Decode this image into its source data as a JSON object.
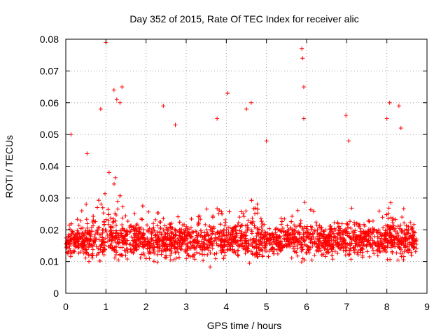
{
  "chart_data": {
    "type": "scatter",
    "title": "Day 352 of 2015, Rate Of TEC Index for receiver alic",
    "xlabel": "GPS time / hours",
    "ylabel": "ROTI / TECUs",
    "xlim": [
      0,
      9
    ],
    "ylim": [
      0,
      0.08
    ],
    "x_ticks": [
      0,
      1,
      2,
      3,
      4,
      5,
      6,
      7,
      8,
      9
    ],
    "x_tick_labels": [
      "0",
      "1",
      "2",
      "3",
      "4",
      "5",
      "6",
      "7",
      "8",
      "9"
    ],
    "y_ticks": [
      0,
      0.01,
      0.02,
      0.03,
      0.04,
      0.05,
      0.06,
      0.07,
      0.08
    ],
    "y_tick_labels": [
      "0",
      "0.01",
      "0.02",
      "0.03",
      "0.04",
      "0.05",
      "0.06",
      "0.07",
      "0.08"
    ],
    "grid": true,
    "marker": "+",
    "series": [
      {
        "name": "ROTI",
        "color": "#ff0000",
        "x_range": [
          0.0,
          8.75
        ],
        "notable_points": [
          {
            "x": 0.13,
            "y": 0.05
          },
          {
            "x": 0.53,
            "y": 0.044
          },
          {
            "x": 0.87,
            "y": 0.058
          },
          {
            "x": 1.0,
            "y": 0.079
          },
          {
            "x": 1.2,
            "y": 0.064
          },
          {
            "x": 1.27,
            "y": 0.061
          },
          {
            "x": 1.4,
            "y": 0.065
          },
          {
            "x": 1.35,
            "y": 0.06
          },
          {
            "x": 2.43,
            "y": 0.059
          },
          {
            "x": 2.73,
            "y": 0.053
          },
          {
            "x": 3.77,
            "y": 0.055
          },
          {
            "x": 4.03,
            "y": 0.063
          },
          {
            "x": 4.5,
            "y": 0.058
          },
          {
            "x": 4.62,
            "y": 0.06
          },
          {
            "x": 5.0,
            "y": 0.048
          },
          {
            "x": 5.88,
            "y": 0.077
          },
          {
            "x": 5.9,
            "y": 0.074
          },
          {
            "x": 5.93,
            "y": 0.065
          },
          {
            "x": 5.93,
            "y": 0.055
          },
          {
            "x": 6.98,
            "y": 0.056
          },
          {
            "x": 7.05,
            "y": 0.048
          },
          {
            "x": 8.0,
            "y": 0.055
          },
          {
            "x": 8.07,
            "y": 0.06
          },
          {
            "x": 8.3,
            "y": 0.059
          },
          {
            "x": 8.35,
            "y": 0.052
          }
        ],
        "baseline_band": {
          "typical_low": 0.008,
          "typical_high": 0.025,
          "clusters_up_to": 0.04
        }
      }
    ]
  }
}
